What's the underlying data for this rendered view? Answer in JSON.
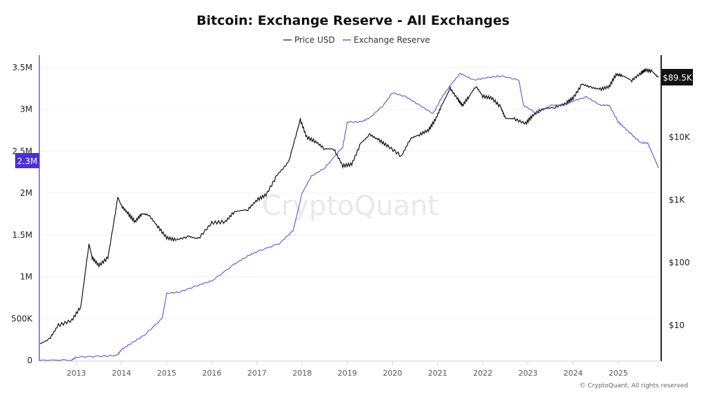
{
  "chart_data": {
    "type": "line",
    "title": "Bitcoin: Exchange Reserve - All Exchanges",
    "legend": {
      "placement": "top-center",
      "entries": [
        "Price USD",
        "Exchange Reserve"
      ]
    },
    "watermark": "CryptoQuant",
    "copyright": "© CryptoQuant. All rights reserved",
    "x_axis": {
      "type": "date",
      "range": [
        2012.18,
        2025.89
      ],
      "ticks": [
        "2013",
        "2014",
        "2015",
        "2016",
        "2017",
        "2018",
        "2019",
        "2020",
        "2021",
        "2022",
        "2023",
        "2024",
        "2025"
      ]
    },
    "y_left": {
      "scale": "linear",
      "range": [
        0,
        3500000
      ],
      "ticks": [
        {
          "v": 0,
          "label": "0"
        },
        {
          "v": 500000,
          "label": "500K"
        },
        {
          "v": 1000000,
          "label": "1M"
        },
        {
          "v": 1500000,
          "label": "1.5M"
        },
        {
          "v": 2000000,
          "label": "2M"
        },
        {
          "v": 2500000,
          "label": "2.5M"
        },
        {
          "v": 3000000,
          "label": "3M"
        },
        {
          "v": 3500000,
          "label": "3.5M"
        }
      ],
      "current_label": "2.3M"
    },
    "y_right": {
      "scale": "log",
      "range": [
        2.6,
        250000
      ],
      "ticks": [
        {
          "v": 10,
          "label": "$10"
        },
        {
          "v": 100,
          "label": "$100"
        },
        {
          "v": 1000,
          "label": "$1K"
        },
        {
          "v": 10000,
          "label": "$10K"
        }
      ],
      "current_label": "$89.5K"
    },
    "grid": true,
    "series": [
      {
        "name": "Price USD",
        "axis": "right",
        "color": "#111111",
        "x": [
          2012.18,
          2012.4,
          2012.6,
          2012.9,
          2013.1,
          2013.28,
          2013.35,
          2013.5,
          2013.7,
          2013.92,
          2014.0,
          2014.15,
          2014.3,
          2014.45,
          2014.6,
          2014.8,
          2015.0,
          2015.2,
          2015.5,
          2015.7,
          2016.0,
          2016.3,
          2016.5,
          2016.8,
          2017.0,
          2017.2,
          2017.45,
          2017.7,
          2017.96,
          2018.1,
          2018.3,
          2018.5,
          2018.7,
          2018.9,
          2019.1,
          2019.3,
          2019.5,
          2019.7,
          2019.9,
          2020.2,
          2020.4,
          2020.6,
          2020.8,
          2020.95,
          2021.1,
          2021.28,
          2021.45,
          2021.55,
          2021.7,
          2021.85,
          2022.0,
          2022.2,
          2022.4,
          2022.5,
          2022.7,
          2022.95,
          2023.1,
          2023.3,
          2023.6,
          2023.85,
          2024.0,
          2024.2,
          2024.4,
          2024.6,
          2024.8,
          2024.95,
          2025.1,
          2025.3,
          2025.5,
          2025.6,
          2025.75,
          2025.89
        ],
        "values": [
          5,
          6,
          10,
          12,
          20,
          200,
          120,
          90,
          120,
          1100,
          800,
          600,
          450,
          600,
          580,
          380,
          250,
          230,
          260,
          240,
          430,
          450,
          650,
          700,
          1000,
          1200,
          2500,
          4000,
          19000,
          10000,
          8500,
          6500,
          6500,
          3500,
          3700,
          8000,
          11000,
          9000,
          7200,
          5000,
          9500,
          11000,
          13000,
          19000,
          33000,
          60000,
          40000,
          32000,
          45000,
          65000,
          45000,
          42000,
          30000,
          20000,
          19500,
          16500,
          22000,
          28000,
          30000,
          35000,
          42000,
          70000,
          62000,
          58000,
          64000,
          100000,
          96000,
          80000,
          105000,
          118000,
          112000,
          89500
        ]
      },
      {
        "name": "Exchange Reserve",
        "axis": "left",
        "color": "#6c5ce7",
        "x": [
          2012.18,
          2012.9,
          2013.0,
          2013.5,
          2013.9,
          2014.0,
          2014.2,
          2014.5,
          2014.9,
          2015.0,
          2015.3,
          2015.7,
          2016.0,
          2016.5,
          2016.8,
          2017.0,
          2017.5,
          2017.8,
          2018.0,
          2018.2,
          2018.5,
          2018.9,
          2019.0,
          2019.3,
          2019.5,
          2019.8,
          2020.0,
          2020.3,
          2020.6,
          2020.9,
          2021.1,
          2021.3,
          2021.5,
          2021.8,
          2022.1,
          2022.4,
          2022.8,
          2022.9,
          2023.2,
          2023.5,
          2023.8,
          2024.0,
          2024.3,
          2024.6,
          2024.8,
          2025.0,
          2025.1,
          2025.3,
          2025.5,
          2025.65,
          2025.8,
          2025.89
        ],
        "values": [
          0,
          5000,
          40000,
          50000,
          60000,
          130000,
          200000,
          300000,
          500000,
          800000,
          820000,
          900000,
          950000,
          1150000,
          1250000,
          1300000,
          1400000,
          1550000,
          2000000,
          2200000,
          2300000,
          2550000,
          2850000,
          2850000,
          2900000,
          3050000,
          3200000,
          3150000,
          3050000,
          2950000,
          3150000,
          3300000,
          3430000,
          3350000,
          3380000,
          3400000,
          3350000,
          3050000,
          2950000,
          3050000,
          3050000,
          3100000,
          3150000,
          3050000,
          3050000,
          2850000,
          2800000,
          2700000,
          2600000,
          2600000,
          2420000,
          2300000
        ]
      }
    ]
  }
}
